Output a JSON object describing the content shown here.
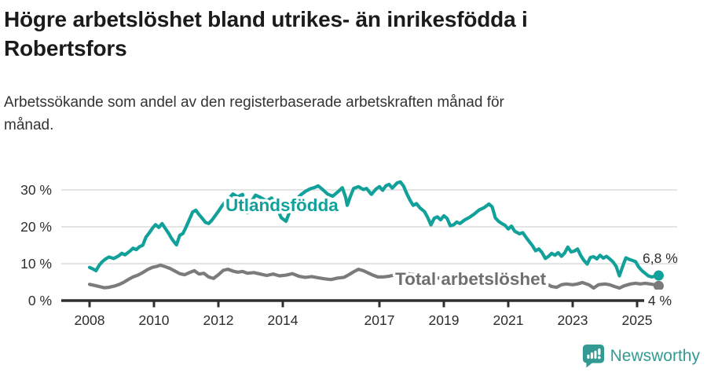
{
  "header": {
    "title_line1": "Högre arbetslöshet bland utrikes- än inrikesfödda i",
    "title_line2": "Robertsfors",
    "subtitle_line1": "Arbetssökande som andel av den registerbaserade arbetskraften månad för",
    "subtitle_line2": "månad."
  },
  "footer": {
    "brand": "Newsworthy"
  },
  "colors": {
    "teal_line": "#12a19a",
    "gray_line": "#7b7b7b",
    "gray_label": "#6f6f6f",
    "axis": "#2f2f2f",
    "grid": "#e4e4e4",
    "tick_text": "#2d2d2d",
    "brand_teal": "#339a93",
    "background": "#ffffff"
  },
  "chart_data": {
    "type": "line",
    "title": "Högre arbetslöshet bland utrikes- än inrikesfödda i Robertsfors",
    "subtitle": "Arbetssökande som andel av den registerbaserade arbetskraften månad för månad.",
    "xlabel": "",
    "ylabel": "",
    "grid": "horizontal",
    "legend_position": "inline-labels",
    "xlim": [
      2007.6,
      2026.0
    ],
    "ylim": [
      0,
      36
    ],
    "ytick_values": [
      0,
      10,
      20,
      30
    ],
    "ytick_labels": [
      "0 %",
      "10 %",
      "20 %",
      "30 %"
    ],
    "xtick_values": [
      2008,
      2010,
      2012,
      2014,
      2017,
      2019,
      2021,
      2023,
      2025
    ],
    "xtick_labels": [
      "2008",
      "2010",
      "2012",
      "2014",
      "2017",
      "2019",
      "2021",
      "2023",
      "2025"
    ],
    "series": [
      {
        "name": "Utlandsfödda",
        "color": "#12a19a",
        "end_label": "6,8 %",
        "end_value": 6.8,
        "points": [
          [
            2008.0,
            9.0
          ],
          [
            2008.1,
            8.6
          ],
          [
            2008.2,
            8.1
          ],
          [
            2008.3,
            9.6
          ],
          [
            2008.4,
            10.6
          ],
          [
            2008.5,
            11.3
          ],
          [
            2008.6,
            11.8
          ],
          [
            2008.75,
            11.4
          ],
          [
            2008.9,
            12.1
          ],
          [
            2009.0,
            12.8
          ],
          [
            2009.1,
            12.4
          ],
          [
            2009.25,
            13.4
          ],
          [
            2009.35,
            14.2
          ],
          [
            2009.45,
            13.8
          ],
          [
            2009.55,
            14.6
          ],
          [
            2009.65,
            15.0
          ],
          [
            2009.75,
            17.2
          ],
          [
            2009.85,
            18.3
          ],
          [
            2009.95,
            19.6
          ],
          [
            2010.05,
            20.6
          ],
          [
            2010.15,
            19.8
          ],
          [
            2010.25,
            20.9
          ],
          [
            2010.35,
            19.6
          ],
          [
            2010.45,
            18.3
          ],
          [
            2010.55,
            16.8
          ],
          [
            2010.65,
            15.6
          ],
          [
            2010.7,
            15.1
          ],
          [
            2010.8,
            17.7
          ],
          [
            2010.9,
            18.2
          ],
          [
            2011.0,
            20.0
          ],
          [
            2011.1,
            22.0
          ],
          [
            2011.2,
            24.0
          ],
          [
            2011.3,
            24.5
          ],
          [
            2011.4,
            23.3
          ],
          [
            2011.5,
            22.3
          ],
          [
            2011.6,
            21.2
          ],
          [
            2011.7,
            20.9
          ],
          [
            2011.8,
            21.8
          ],
          [
            2011.9,
            23.0
          ],
          [
            2012.0,
            24.2
          ],
          [
            2012.1,
            25.5
          ],
          [
            2012.2,
            26.6
          ],
          [
            2012.3,
            27.4
          ],
          [
            2012.45,
            28.9
          ],
          [
            2012.6,
            28.1
          ],
          [
            2012.75,
            28.8
          ],
          [
            2012.9,
            23.8
          ],
          [
            2013.0,
            26.5
          ],
          [
            2013.15,
            28.6
          ],
          [
            2013.3,
            28.0
          ],
          [
            2013.5,
            27.0
          ],
          [
            2013.65,
            27.8
          ],
          [
            2013.8,
            25.5
          ],
          [
            2013.95,
            22.5
          ],
          [
            2014.1,
            21.5
          ],
          [
            2014.25,
            25.0
          ],
          [
            2014.4,
            27.3
          ],
          [
            2014.55,
            28.6
          ],
          [
            2014.7,
            29.6
          ],
          [
            2014.85,
            30.3
          ],
          [
            2015.0,
            30.7
          ],
          [
            2015.1,
            31.1
          ],
          [
            2015.25,
            30.0
          ],
          [
            2015.4,
            28.8
          ],
          [
            2015.55,
            28.3
          ],
          [
            2015.7,
            29.4
          ],
          [
            2015.85,
            30.6
          ],
          [
            2015.95,
            28.0
          ],
          [
            2016.0,
            25.8
          ],
          [
            2016.1,
            28.3
          ],
          [
            2016.2,
            30.4
          ],
          [
            2016.35,
            30.9
          ],
          [
            2016.5,
            30.1
          ],
          [
            2016.6,
            30.4
          ],
          [
            2016.75,
            28.8
          ],
          [
            2016.9,
            30.3
          ],
          [
            2017.0,
            30.9
          ],
          [
            2017.1,
            29.9
          ],
          [
            2017.2,
            31.1
          ],
          [
            2017.3,
            31.5
          ],
          [
            2017.4,
            30.5
          ],
          [
            2017.55,
            31.9
          ],
          [
            2017.65,
            32.2
          ],
          [
            2017.75,
            31.0
          ],
          [
            2017.85,
            29.0
          ],
          [
            2017.95,
            27.2
          ],
          [
            2018.05,
            25.8
          ],
          [
            2018.15,
            26.3
          ],
          [
            2018.25,
            25.2
          ],
          [
            2018.4,
            24.1
          ],
          [
            2018.5,
            22.5
          ],
          [
            2018.6,
            20.5
          ],
          [
            2018.7,
            22.3
          ],
          [
            2018.8,
            22.7
          ],
          [
            2018.9,
            21.9
          ],
          [
            2019.0,
            23.0
          ],
          [
            2019.1,
            22.3
          ],
          [
            2019.2,
            20.3
          ],
          [
            2019.3,
            20.5
          ],
          [
            2019.4,
            21.3
          ],
          [
            2019.5,
            20.9
          ],
          [
            2019.65,
            21.9
          ],
          [
            2019.8,
            22.6
          ],
          [
            2019.95,
            23.5
          ],
          [
            2020.1,
            24.6
          ],
          [
            2020.25,
            25.2
          ],
          [
            2020.4,
            26.2
          ],
          [
            2020.5,
            25.4
          ],
          [
            2020.6,
            22.4
          ],
          [
            2020.7,
            21.5
          ],
          [
            2020.8,
            20.9
          ],
          [
            2020.9,
            20.4
          ],
          [
            2021.0,
            19.4
          ],
          [
            2021.1,
            20.2
          ],
          [
            2021.2,
            18.8
          ],
          [
            2021.35,
            18.1
          ],
          [
            2021.45,
            18.4
          ],
          [
            2021.55,
            17.2
          ],
          [
            2021.65,
            16.0
          ],
          [
            2021.75,
            14.9
          ],
          [
            2021.85,
            13.5
          ],
          [
            2021.95,
            14.0
          ],
          [
            2022.05,
            13.0
          ],
          [
            2022.15,
            11.4
          ],
          [
            2022.25,
            12.0
          ],
          [
            2022.35,
            12.8
          ],
          [
            2022.45,
            12.3
          ],
          [
            2022.55,
            13.0
          ],
          [
            2022.65,
            12.0
          ],
          [
            2022.75,
            12.9
          ],
          [
            2022.85,
            14.5
          ],
          [
            2022.95,
            13.2
          ],
          [
            2023.05,
            13.4
          ],
          [
            2023.15,
            14.0
          ],
          [
            2023.25,
            12.2
          ],
          [
            2023.35,
            10.9
          ],
          [
            2023.45,
            9.9
          ],
          [
            2023.55,
            11.7
          ],
          [
            2023.65,
            11.9
          ],
          [
            2023.75,
            11.3
          ],
          [
            2023.85,
            12.3
          ],
          [
            2023.95,
            11.5
          ],
          [
            2024.05,
            12.0
          ],
          [
            2024.15,
            11.3
          ],
          [
            2024.25,
            10.5
          ],
          [
            2024.35,
            9.3
          ],
          [
            2024.45,
            6.7
          ],
          [
            2024.55,
            9.2
          ],
          [
            2024.65,
            11.6
          ],
          [
            2024.75,
            11.2
          ],
          [
            2024.85,
            10.9
          ],
          [
            2024.95,
            10.6
          ],
          [
            2025.05,
            9.1
          ],
          [
            2025.15,
            8.1
          ],
          [
            2025.25,
            7.4
          ],
          [
            2025.35,
            6.7
          ],
          [
            2025.45,
            6.4
          ],
          [
            2025.55,
            6.6
          ],
          [
            2025.67,
            6.8
          ]
        ]
      },
      {
        "name": "Total arbetslöshet",
        "color": "#7b7b7b",
        "end_label": "4 %",
        "end_value": 4.0,
        "points": [
          [
            2008.0,
            4.4
          ],
          [
            2008.15,
            4.1
          ],
          [
            2008.3,
            3.8
          ],
          [
            2008.45,
            3.5
          ],
          [
            2008.6,
            3.6
          ],
          [
            2008.75,
            3.9
          ],
          [
            2008.9,
            4.3
          ],
          [
            2009.05,
            4.9
          ],
          [
            2009.2,
            5.7
          ],
          [
            2009.35,
            6.4
          ],
          [
            2009.5,
            6.9
          ],
          [
            2009.65,
            7.6
          ],
          [
            2009.8,
            8.4
          ],
          [
            2009.95,
            9.0
          ],
          [
            2010.1,
            9.3
          ],
          [
            2010.2,
            9.6
          ],
          [
            2010.35,
            9.2
          ],
          [
            2010.5,
            8.7
          ],
          [
            2010.65,
            8.0
          ],
          [
            2010.8,
            7.3
          ],
          [
            2010.95,
            7.0
          ],
          [
            2011.1,
            7.6
          ],
          [
            2011.25,
            8.1
          ],
          [
            2011.4,
            7.2
          ],
          [
            2011.55,
            7.4
          ],
          [
            2011.7,
            6.4
          ],
          [
            2011.85,
            6.0
          ],
          [
            2012.0,
            7.0
          ],
          [
            2012.15,
            8.2
          ],
          [
            2012.3,
            8.5
          ],
          [
            2012.45,
            8.0
          ],
          [
            2012.6,
            7.7
          ],
          [
            2012.75,
            7.9
          ],
          [
            2012.9,
            7.4
          ],
          [
            2013.1,
            7.6
          ],
          [
            2013.3,
            7.2
          ],
          [
            2013.5,
            6.8
          ],
          [
            2013.7,
            7.2
          ],
          [
            2013.9,
            6.7
          ],
          [
            2014.1,
            6.9
          ],
          [
            2014.3,
            7.3
          ],
          [
            2014.5,
            6.6
          ],
          [
            2014.7,
            6.3
          ],
          [
            2014.9,
            6.5
          ],
          [
            2015.1,
            6.2
          ],
          [
            2015.3,
            5.9
          ],
          [
            2015.5,
            5.7
          ],
          [
            2015.7,
            6.1
          ],
          [
            2015.9,
            6.3
          ],
          [
            2016.05,
            7.0
          ],
          [
            2016.2,
            7.8
          ],
          [
            2016.35,
            8.5
          ],
          [
            2016.5,
            8.1
          ],
          [
            2016.65,
            7.5
          ],
          [
            2016.8,
            6.9
          ],
          [
            2016.95,
            6.4
          ],
          [
            2017.1,
            6.4
          ],
          [
            2017.3,
            6.6
          ],
          [
            2017.5,
            7.0
          ],
          [
            2017.7,
            7.2
          ],
          [
            2017.9,
            7.3
          ],
          [
            2018.1,
            7.0
          ],
          [
            2018.4,
            6.6
          ],
          [
            2018.7,
            6.2
          ],
          [
            2019.0,
            6.0
          ],
          [
            2019.3,
            5.7
          ],
          [
            2019.6,
            5.5
          ],
          [
            2019.9,
            5.9
          ],
          [
            2020.2,
            6.4
          ],
          [
            2020.5,
            6.2
          ],
          [
            2020.8,
            5.8
          ],
          [
            2021.1,
            5.4
          ],
          [
            2021.4,
            5.1
          ],
          [
            2021.7,
            4.9
          ],
          [
            2022.0,
            4.7
          ],
          [
            2022.2,
            4.5
          ],
          [
            2022.35,
            3.8
          ],
          [
            2022.5,
            3.6
          ],
          [
            2022.65,
            4.3
          ],
          [
            2022.8,
            4.5
          ],
          [
            2023.0,
            4.3
          ],
          [
            2023.15,
            4.5
          ],
          [
            2023.3,
            4.9
          ],
          [
            2023.5,
            4.3
          ],
          [
            2023.65,
            3.4
          ],
          [
            2023.8,
            4.3
          ],
          [
            2024.0,
            4.5
          ],
          [
            2024.15,
            4.3
          ],
          [
            2024.3,
            3.8
          ],
          [
            2024.45,
            3.4
          ],
          [
            2024.6,
            4.0
          ],
          [
            2024.8,
            4.5
          ],
          [
            2024.95,
            4.7
          ],
          [
            2025.1,
            4.5
          ],
          [
            2025.25,
            4.7
          ],
          [
            2025.4,
            4.5
          ],
          [
            2025.55,
            4.3
          ],
          [
            2025.67,
            4.0
          ]
        ]
      }
    ]
  }
}
